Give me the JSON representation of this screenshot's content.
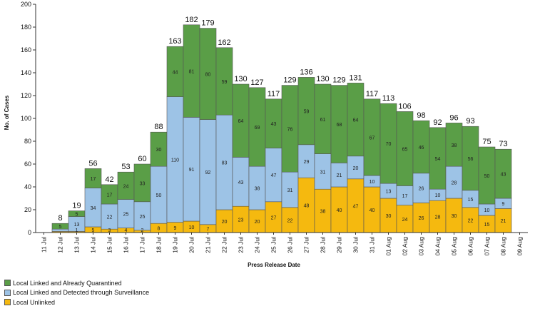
{
  "chart_data": {
    "type": "bar",
    "stacked": true,
    "title": "",
    "xlabel": "Press Release Date",
    "ylabel": "No. of Cases",
    "ylim": [
      0,
      200
    ],
    "yticks": [
      0,
      20,
      40,
      60,
      80,
      100,
      120,
      140,
      160,
      180,
      200
    ],
    "grid": false,
    "legend_position": "bottom-left",
    "categories": [
      "11 Jul",
      "12 Jul",
      "13 Jul",
      "14 Jul",
      "15 Jul",
      "16 Jul",
      "17 Jul",
      "18 Jul",
      "19 Jul",
      "20 Jul",
      "21 Jul",
      "22 Jul",
      "23 Jul",
      "24 Jul",
      "25 Jul",
      "26 Jul",
      "27 Jul",
      "28 Jul",
      "29 Jul",
      "30 Jul",
      "31 Jul",
      "01 Aug",
      "02 Aug",
      "03 Aug",
      "04 Aug",
      "05 Aug",
      "06 Aug",
      "07 Aug",
      "08 Aug",
      "09 Aug"
    ],
    "totals": [
      null,
      8,
      19,
      56,
      42,
      53,
      60,
      88,
      163,
      182,
      179,
      162,
      130,
      127,
      117,
      129,
      136,
      130,
      129,
      131,
      117,
      113,
      106,
      98,
      92,
      96,
      93,
      75,
      73,
      null
    ],
    "series": [
      {
        "name": "Local Unlinked",
        "color": "#f5b90f",
        "values": [
          null,
          1,
          1,
          5,
          3,
          4,
          2,
          8,
          9,
          10,
          7,
          20,
          23,
          20,
          27,
          22,
          48,
          38,
          40,
          47,
          40,
          30,
          24,
          26,
          28,
          30,
          22,
          15,
          21,
          null
        ]
      },
      {
        "name": "Local Linked and Detected through Surveillance",
        "color": "#9dc3e6",
        "values": [
          null,
          2,
          13,
          34,
          22,
          25,
          25,
          50,
          110,
          91,
          92,
          83,
          43,
          38,
          47,
          31,
          29,
          31,
          21,
          20,
          10,
          13,
          17,
          26,
          10,
          28,
          15,
          10,
          9,
          null
        ]
      },
      {
        "name": "Local Linked and Already Quarantined",
        "color": "#5a9e47",
        "values": [
          null,
          5,
          5,
          17,
          17,
          24,
          33,
          30,
          44,
          81,
          80,
          59,
          64,
          69,
          43,
          76,
          59,
          61,
          68,
          64,
          67,
          70,
          65,
          46,
          54,
          38,
          56,
          50,
          43,
          null
        ]
      }
    ],
    "segment_labels": {
      "Local Unlinked": [
        null,
        "",
        "1",
        "5",
        "3",
        "4",
        "2",
        "8",
        "9",
        "10",
        "7",
        "20",
        "23",
        "20",
        "27",
        "22",
        "48",
        "38",
        "40",
        "47",
        "40",
        "30",
        "24",
        "26",
        "28",
        "30",
        "22",
        "15",
        "21",
        null
      ],
      "Local Linked and Detected through Surveillance": [
        null,
        "",
        "13",
        "34",
        "22",
        "25",
        "25",
        "50",
        "110",
        "91",
        "92",
        "83",
        "43",
        "38",
        "47",
        "31",
        "29",
        "31",
        "21",
        "20",
        "10",
        "13",
        "17",
        "26",
        "10",
        "28",
        "15",
        "10",
        "9",
        null
      ],
      "Local Linked and Already Quarantined": [
        null,
        "5",
        "5",
        "17",
        "17",
        "24",
        "33",
        "30",
        "44",
        "81",
        "80",
        "59",
        "64",
        "69",
        "43",
        "76",
        "59",
        "61",
        "68",
        "64",
        "67",
        "70",
        "65",
        "46",
        "54",
        "38",
        "56",
        "50",
        "43",
        null
      ]
    }
  }
}
